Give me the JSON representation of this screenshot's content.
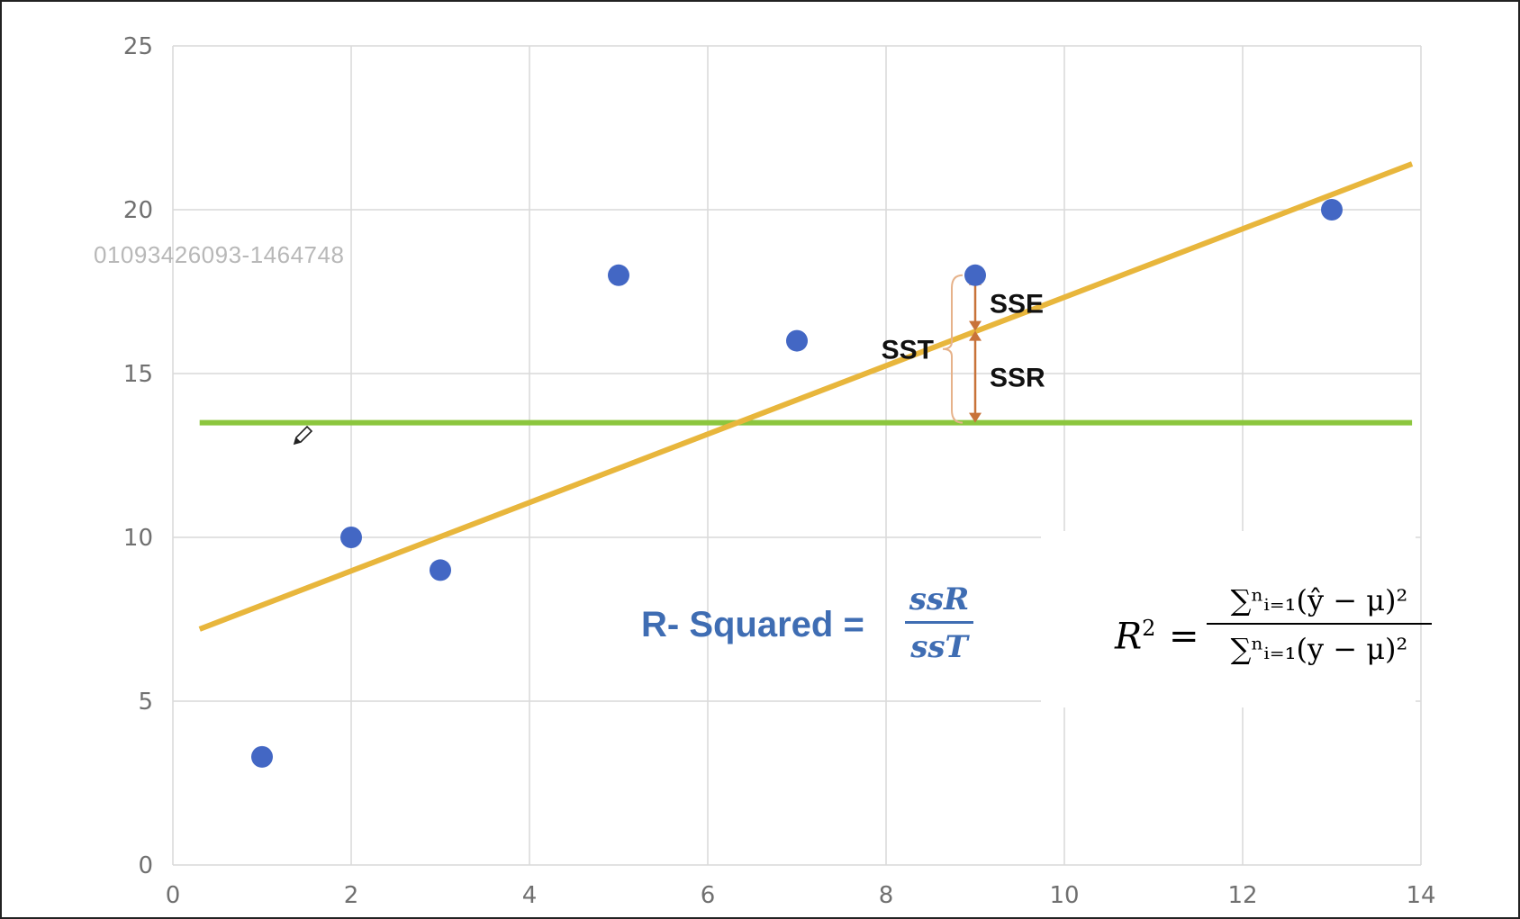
{
  "watermark": "01093426093-1464748",
  "annotations": {
    "sse": "SSE",
    "ssr": "SSR",
    "sst": "SST"
  },
  "r_squared": {
    "label": "R- Squared  =",
    "numerator": "ssR",
    "denominator": "ssT"
  },
  "formula": {
    "lhs": "R",
    "lhs_exp": "2",
    "eq": "=",
    "numerator": "∑ⁿᵢ₌₁(ŷ − μ)²",
    "denominator": "∑ⁿᵢ₌₁(y − μ)²"
  },
  "colors": {
    "points": "#4367c4",
    "regression_line": "#e8b63c",
    "mean_line": "#8cc63e",
    "arrows": "#c8733a",
    "brace": "#e6b28a",
    "grid": "#d9d9d9",
    "rsq_text": "#3f6db3"
  },
  "icons": {
    "cursor": "pencil-icon"
  },
  "chart_data": {
    "type": "scatter",
    "title": "",
    "xlabel": "",
    "ylabel": "",
    "xlim": [
      0,
      14
    ],
    "ylim": [
      0,
      25
    ],
    "xticks": [
      0,
      2,
      4,
      6,
      8,
      10,
      12,
      14
    ],
    "yticks": [
      0,
      5,
      10,
      15,
      20,
      25
    ],
    "grid": true,
    "series": [
      {
        "points": [
          [
            1,
            3.3
          ],
          [
            2,
            10
          ],
          [
            3,
            9
          ],
          [
            5,
            18
          ],
          [
            7,
            16
          ],
          [
            9,
            18
          ],
          [
            13,
            20
          ]
        ]
      }
    ],
    "regression_line": {
      "x": [
        0.3,
        13.9
      ],
      "y": [
        7.2,
        21.4
      ]
    },
    "mean_line": {
      "x": [
        0.3,
        13.9
      ],
      "y": 13.5
    },
    "sse_segment": {
      "x": 9,
      "y_from": 16.3,
      "y_to": 18
    },
    "ssr_segment": {
      "x": 9,
      "y_from": 13.5,
      "y_to": 16.3
    }
  }
}
